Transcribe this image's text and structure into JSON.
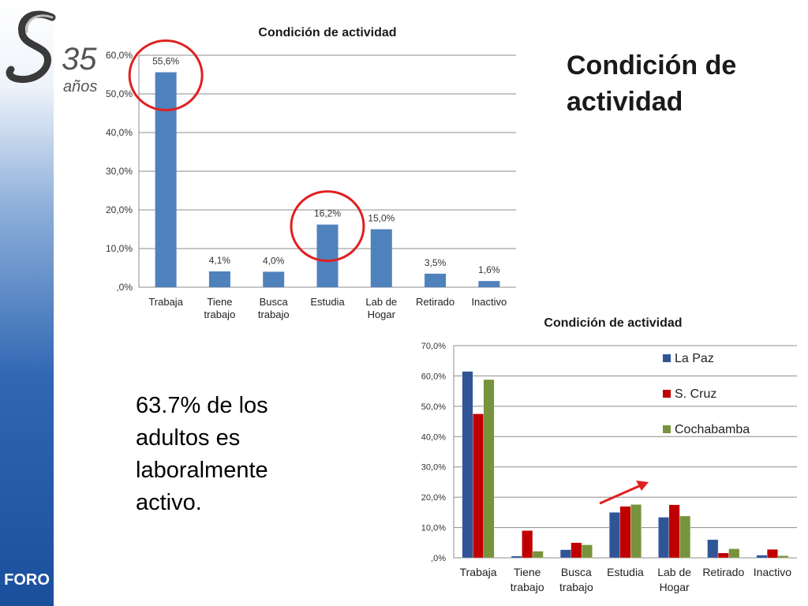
{
  "slide": {
    "title": "Condición de actividad",
    "body_text": "63.7% de los adultos es laboralmente activo.",
    "footer_label": "FORO",
    "logo_text": "35 años"
  },
  "colors": {
    "bar_primary": "#4f81bd",
    "la_paz": "#2f5597",
    "s_cruz": "#c00000",
    "cochabamba": "#77933c",
    "highlight": "#e02020",
    "sidebar": "#2f67b3"
  },
  "chart_data": [
    {
      "type": "bar",
      "title": "Condición de actividad",
      "categories": [
        [
          "Trabaja"
        ],
        [
          "Tiene",
          "trabajo"
        ],
        [
          "Busca",
          "trabajo"
        ],
        [
          "Estudia"
        ],
        [
          "Lab de",
          "Hogar"
        ],
        [
          "Retirado"
        ],
        [
          "Inactivo"
        ]
      ],
      "values": [
        55.6,
        4.1,
        4.0,
        16.2,
        15.0,
        3.5,
        1.6
      ],
      "data_labels": [
        "55,6%",
        "4,1%",
        "4,0%",
        "16,2%",
        "15,0%",
        "3,5%",
        "1,6%"
      ],
      "ylim": [
        0,
        60
      ],
      "yticks": [
        ",0%",
        "10,0%",
        "20,0%",
        "30,0%",
        "40,0%",
        "50,0%",
        "60,0%"
      ],
      "grid": true,
      "highlighted_categories": [
        "Trabaja",
        "Estudia"
      ]
    },
    {
      "type": "bar",
      "title": "Condición de actividad",
      "categories": [
        [
          "Trabaja"
        ],
        [
          "Tiene",
          "trabajo"
        ],
        [
          "Busca",
          "trabajo"
        ],
        [
          "Estudia"
        ],
        [
          "Lab de",
          "Hogar"
        ],
        [
          "Retirado"
        ],
        [
          "Inactivo"
        ]
      ],
      "series": [
        {
          "name": "La Paz",
          "values": [
            61.5,
            0.6,
            2.7,
            15.0,
            13.4,
            6.0,
            0.9
          ]
        },
        {
          "name": "S. Cruz",
          "values": [
            47.5,
            9.0,
            5.0,
            17.0,
            17.5,
            1.6,
            2.8
          ]
        },
        {
          "name": "Cochabamba",
          "values": [
            58.8,
            2.2,
            4.3,
            17.6,
            13.8,
            3.0,
            0.7
          ]
        }
      ],
      "ylim": [
        0,
        70
      ],
      "yticks": [
        ",0%",
        "10,0%",
        "20,0%",
        "30,0%",
        "40,0%",
        "50,0%",
        "60,0%",
        "70,0%"
      ],
      "grid": true,
      "legend_position": "top-right",
      "annotation": "arrow pointing up-right at Estudia"
    }
  ]
}
